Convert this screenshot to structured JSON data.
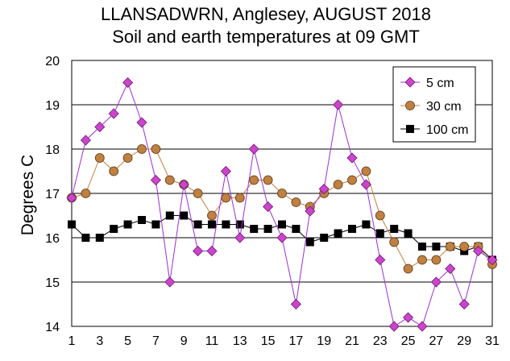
{
  "chart_data": {
    "type": "line",
    "title": "LLANSADWRN, Anglesey, AUGUST 2018",
    "subtitle": "Soil and earth temperatures at 09 GMT",
    "xlabel": "",
    "ylabel": "Degrees C",
    "xlim": [
      1,
      31
    ],
    "ylim": [
      14,
      20
    ],
    "x_ticks": [
      "1",
      "3",
      "5",
      "7",
      "9",
      "11",
      "13",
      "15",
      "17",
      "19",
      "21",
      "23",
      "25",
      "27",
      "29",
      "31"
    ],
    "y_ticks": [
      "14",
      "15",
      "16",
      "17",
      "18",
      "19",
      "20"
    ],
    "grid": "horizontal",
    "legend_position": "top-right",
    "x": [
      1,
      2,
      3,
      4,
      5,
      6,
      7,
      8,
      9,
      10,
      11,
      12,
      13,
      14,
      15,
      16,
      17,
      18,
      19,
      20,
      21,
      22,
      23,
      24,
      25,
      26,
      27,
      28,
      29,
      30,
      31
    ],
    "series": [
      {
        "name": "5 cm",
        "color": "#cc44cc",
        "line_color": "#9933cc",
        "marker": "diamond",
        "values": [
          16.9,
          18.2,
          18.5,
          18.8,
          19.5,
          18.6,
          17.3,
          15.0,
          17.2,
          15.7,
          15.7,
          17.5,
          16.0,
          18.0,
          16.7,
          16.0,
          14.5,
          16.6,
          17.1,
          19.0,
          17.8,
          17.2,
          15.5,
          14.0,
          14.2,
          14.0,
          15.0,
          15.3,
          14.5,
          15.7,
          15.5
        ]
      },
      {
        "name": "30 cm",
        "color": "#c08040",
        "line_color": "#c08040",
        "marker": "circle",
        "values": [
          16.9,
          17.0,
          17.8,
          17.5,
          17.8,
          18.0,
          18.0,
          17.3,
          17.2,
          17.0,
          16.5,
          16.9,
          16.9,
          17.3,
          17.3,
          17.0,
          16.8,
          16.7,
          17.0,
          17.2,
          17.3,
          17.5,
          16.5,
          15.9,
          15.3,
          15.5,
          15.5,
          15.8,
          15.8,
          15.8,
          15.4
        ]
      },
      {
        "name": "100 cm",
        "color": "#000000",
        "line_color": "#000000",
        "marker": "square",
        "values": [
          16.3,
          16.0,
          16.0,
          16.2,
          16.3,
          16.4,
          16.3,
          16.5,
          16.5,
          16.3,
          16.3,
          16.3,
          16.3,
          16.2,
          16.2,
          16.3,
          16.2,
          15.9,
          16.0,
          16.1,
          16.2,
          16.3,
          16.1,
          16.2,
          16.1,
          15.8,
          15.8,
          15.8,
          15.7,
          15.8,
          15.5
        ]
      }
    ]
  }
}
